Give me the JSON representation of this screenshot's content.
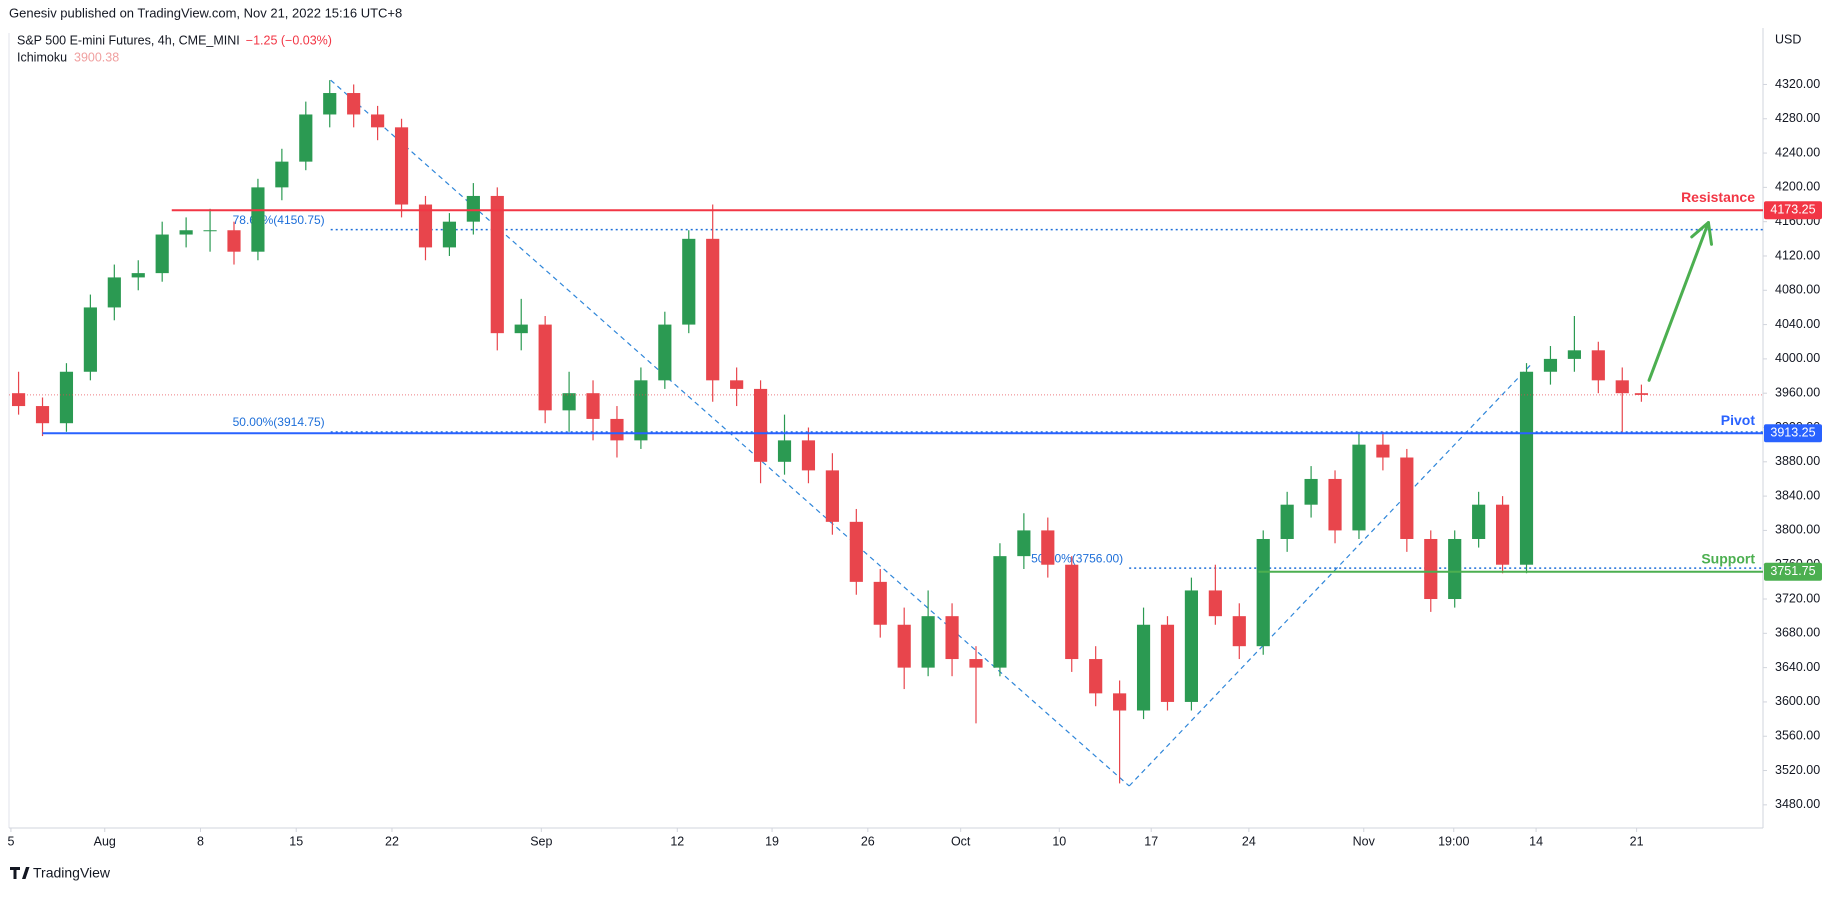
{
  "header": {
    "published": "Genesiv published on TradingView.com, Nov 21, 2022 15:16 UTC+8",
    "symbol": "S&P 500 E-mini Futures, 4h, CME_MINI",
    "change": "−1.25 (−0.03%)",
    "indicator": "Ichimoku",
    "indicator_value": "3900.38",
    "currency": "USD",
    "brand": "TradingView"
  },
  "chart_data": {
    "type": "candlestick",
    "up_color": "#2b9a52",
    "down_color": "#e8454c",
    "x": [
      0.1,
      0.35,
      0.6,
      0.85,
      1.1,
      1.35,
      1.6,
      1.85,
      2.1,
      2.35,
      2.6,
      2.85,
      3.1,
      3.35,
      3.6,
      3.85,
      4.1,
      4.35,
      4.6,
      4.85,
      5.1,
      5.35,
      5.6,
      5.85,
      6.1,
      6.35,
      6.6,
      6.85,
      7.1,
      7.35,
      7.6,
      7.85,
      8.1,
      8.35,
      8.6,
      8.85,
      9.1,
      9.35,
      9.6,
      9.85,
      10.1,
      10.35,
      10.6,
      10.85,
      11.1,
      11.35,
      11.6,
      11.85,
      12.1,
      12.35,
      12.6,
      12.85,
      13.1,
      13.35,
      13.6,
      13.85,
      14.1,
      14.35,
      14.6,
      14.85,
      15.1,
      15.35,
      15.6,
      15.85,
      16.1,
      16.35,
      16.6,
      16.85,
      17.05
    ],
    "open": [
      3960,
      3945,
      3925,
      3985,
      4060,
      4095,
      4100,
      4145,
      4150,
      4150,
      4125,
      4200,
      4230,
      4285,
      4310,
      4285,
      4270,
      4180,
      4130,
      4160,
      4190,
      4030,
      4040,
      3940,
      3960,
      3930,
      3905,
      3975,
      4040,
      4140,
      3975,
      3965,
      3880,
      3905,
      3870,
      3810,
      3740,
      3690,
      3640,
      3700,
      3650,
      3640,
      3770,
      3800,
      3760,
      3650,
      3610,
      3590,
      3690,
      3600,
      3730,
      3700,
      3665,
      3790,
      3830,
      3860,
      3800,
      3900,
      3885,
      3790,
      3720,
      3790,
      3830,
      3760,
      3985,
      4000,
      4010,
      3975,
      3960
    ],
    "high": [
      3985,
      3955,
      3995,
      4075,
      4110,
      4115,
      4160,
      4165,
      4175,
      4160,
      4210,
      4245,
      4300,
      4325,
      4320,
      4295,
      4280,
      4190,
      4170,
      4205,
      4200,
      4070,
      4050,
      3985,
      3975,
      3945,
      3990,
      4055,
      4150,
      4180,
      3990,
      3975,
      3935,
      3920,
      3890,
      3825,
      3755,
      3710,
      3730,
      3715,
      3665,
      3785,
      3820,
      3815,
      3770,
      3665,
      3625,
      3710,
      3700,
      3745,
      3760,
      3715,
      3800,
      3845,
      3875,
      3870,
      3915,
      3915,
      3895,
      3800,
      3800,
      3845,
      3840,
      3995,
      4015,
      4050,
      4020,
      3990,
      3970
    ],
    "low": [
      3935,
      3910,
      3915,
      3975,
      4045,
      4080,
      4090,
      4130,
      4125,
      4110,
      4115,
      4185,
      4220,
      4270,
      4270,
      4255,
      4165,
      4115,
      4120,
      4145,
      4010,
      4010,
      3925,
      3915,
      3905,
      3885,
      3895,
      3965,
      4030,
      3950,
      3945,
      3855,
      3865,
      3855,
      3795,
      3725,
      3675,
      3615,
      3630,
      3630,
      3575,
      3630,
      3755,
      3745,
      3635,
      3595,
      3505,
      3580,
      3590,
      3590,
      3690,
      3650,
      3655,
      3775,
      3815,
      3785,
      3790,
      3870,
      3775,
      3705,
      3710,
      3780,
      3750,
      3750,
      3970,
      3985,
      3960,
      3915,
      3950
    ],
    "close": [
      3945,
      3925,
      3985,
      4060,
      4095,
      4100,
      4145,
      4150,
      4150,
      4125,
      4200,
      4230,
      4285,
      4310,
      4285,
      4270,
      4180,
      4130,
      4160,
      4190,
      4030,
      4040,
      3940,
      3960,
      3930,
      3905,
      3975,
      4040,
      4140,
      3975,
      3965,
      3880,
      3905,
      3870,
      3810,
      3740,
      3690,
      3640,
      3700,
      3650,
      3640,
      3770,
      3800,
      3760,
      3650,
      3610,
      3590,
      3690,
      3600,
      3730,
      3700,
      3665,
      3790,
      3830,
      3860,
      3800,
      3900,
      3885,
      3790,
      3720,
      3790,
      3830,
      3760,
      3985,
      4000,
      4010,
      3975,
      3960,
      3958
    ],
    "xlim": [
      0,
      18.32
    ],
    "xticks": [
      {
        "value": 0.02,
        "label": "5"
      },
      {
        "value": 1,
        "label": "Aug"
      },
      {
        "value": 2,
        "label": "8"
      },
      {
        "value": 3,
        "label": "15"
      },
      {
        "value": 4,
        "label": "22"
      },
      {
        "value": 5.56,
        "label": "Sep"
      },
      {
        "value": 6.98,
        "label": "12"
      },
      {
        "value": 7.97,
        "label": "19"
      },
      {
        "value": 8.97,
        "label": "26"
      },
      {
        "value": 9.94,
        "label": "Oct"
      },
      {
        "value": 10.97,
        "label": "10"
      },
      {
        "value": 11.93,
        "label": "17"
      },
      {
        "value": 12.95,
        "label": "24"
      },
      {
        "value": 14.15,
        "label": "Nov"
      },
      {
        "value": 15.09,
        "label": "19:00"
      },
      {
        "value": 15.95,
        "label": "14"
      },
      {
        "value": 17.0,
        "label": "21"
      }
    ],
    "ylim": [
      3453,
      4380
    ],
    "yticks": [
      {
        "value": 3480,
        "label": "3480.00"
      },
      {
        "value": 3520,
        "label": "3520.00"
      },
      {
        "value": 3560,
        "label": "3560.00"
      },
      {
        "value": 3600,
        "label": "3600.00"
      },
      {
        "value": 3640,
        "label": "3640.00"
      },
      {
        "value": 3680,
        "label": "3680.00"
      },
      {
        "value": 3720,
        "label": "3720.00"
      },
      {
        "value": 3760,
        "label": "3760.00"
      },
      {
        "value": 3800,
        "label": "3800.00"
      },
      {
        "value": 3840,
        "label": "3840.00"
      },
      {
        "value": 3880,
        "label": "3880.00"
      },
      {
        "value": 3920,
        "label": "3920.00"
      },
      {
        "value": 3960,
        "label": "3960.00"
      },
      {
        "value": 4000,
        "label": "4000.00"
      },
      {
        "value": 4040,
        "label": "4040.00"
      },
      {
        "value": 4080,
        "label": "4080.00"
      },
      {
        "value": 4120,
        "label": "4120.00"
      },
      {
        "value": 4160,
        "label": "4160.00"
      },
      {
        "value": 4200,
        "label": "4200.00"
      },
      {
        "value": 4240,
        "label": "4240.00"
      },
      {
        "value": 4280,
        "label": "4280.00"
      },
      {
        "value": 4320,
        "label": "4320.00"
      }
    ],
    "grid": false,
    "levels": [
      {
        "name": "Resistance",
        "value": 4173.25,
        "color": "#f23645",
        "start": 1.7
      },
      {
        "name": "Pivot",
        "value": 3913.25,
        "color": "#2962ff",
        "start": 0.35
      },
      {
        "name": "Support",
        "value": 3751.75,
        "color": "#4caf50",
        "start": 13.05
      }
    ],
    "fib_lines": [
      {
        "label": "78.60%(4150.75)",
        "value": 4150.75,
        "start": 3.36
      },
      {
        "label": "50.00%(3914.75)",
        "value": 3914.75,
        "start": 3.36
      },
      {
        "label": "50.00%(3756.00)",
        "value": 3756.0,
        "start": 11.7
      }
    ],
    "fib_color": "#1e6fd9",
    "trend_lines": [
      {
        "x": [
          3.36,
          11.7
        ],
        "y": [
          4325,
          3502
        ]
      },
      {
        "x": [
          11.7,
          15.91
        ],
        "y": [
          3502,
          3995
        ]
      }
    ],
    "arrow": {
      "x": [
        17.13,
        17.75
      ],
      "y": [
        3975,
        4159
      ],
      "color": "#4caf50"
    }
  }
}
